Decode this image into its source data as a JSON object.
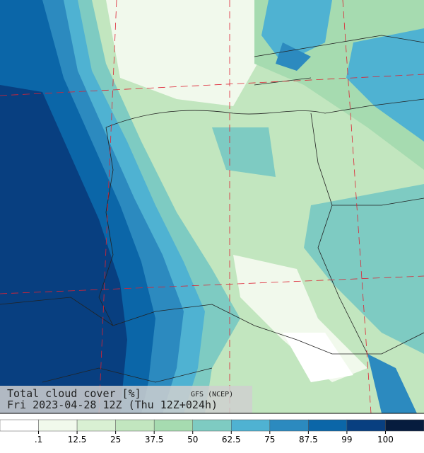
{
  "header": {
    "title": "Total cloud cover  [%]",
    "source": "GFS (NCEP)",
    "time": "Fri 2023-04-28 12Z (Thu 12Z+024h)"
  },
  "legend": {
    "colors": [
      "#ffffff",
      "#f1f9ec",
      "#d9f0d3",
      "#c2e6bf",
      "#a6dbb0",
      "#7ecbc2",
      "#4fb2d2",
      "#2c8abf",
      "#0b66a8",
      "#083f80",
      "#061c3e"
    ],
    "ticks": [
      ".1",
      "12.5",
      "25",
      "37.5",
      "50",
      "62.5",
      "75",
      "87.5",
      "99",
      "100"
    ]
  }
}
